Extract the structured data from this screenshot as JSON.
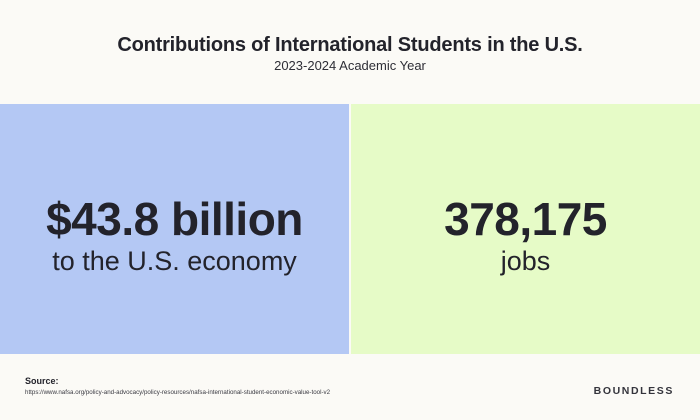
{
  "header": {
    "title": "Contributions of International Students in the U.S.",
    "subtitle": "2023-2024 Academic Year"
  },
  "stats": [
    {
      "value": "$43.8 billion",
      "label": "to the U.S. economy",
      "color": "#b4c8f4"
    },
    {
      "value": "378,175",
      "label": "jobs",
      "color": "#e6fbc7"
    }
  ],
  "footer": {
    "source_label": "Source:",
    "source_url": "https://www.nafsa.org/policy-and-advocacy/policy-resources/nafsa-international-student-economic-value-tool-v2",
    "brand": "BOUNDLESS"
  }
}
